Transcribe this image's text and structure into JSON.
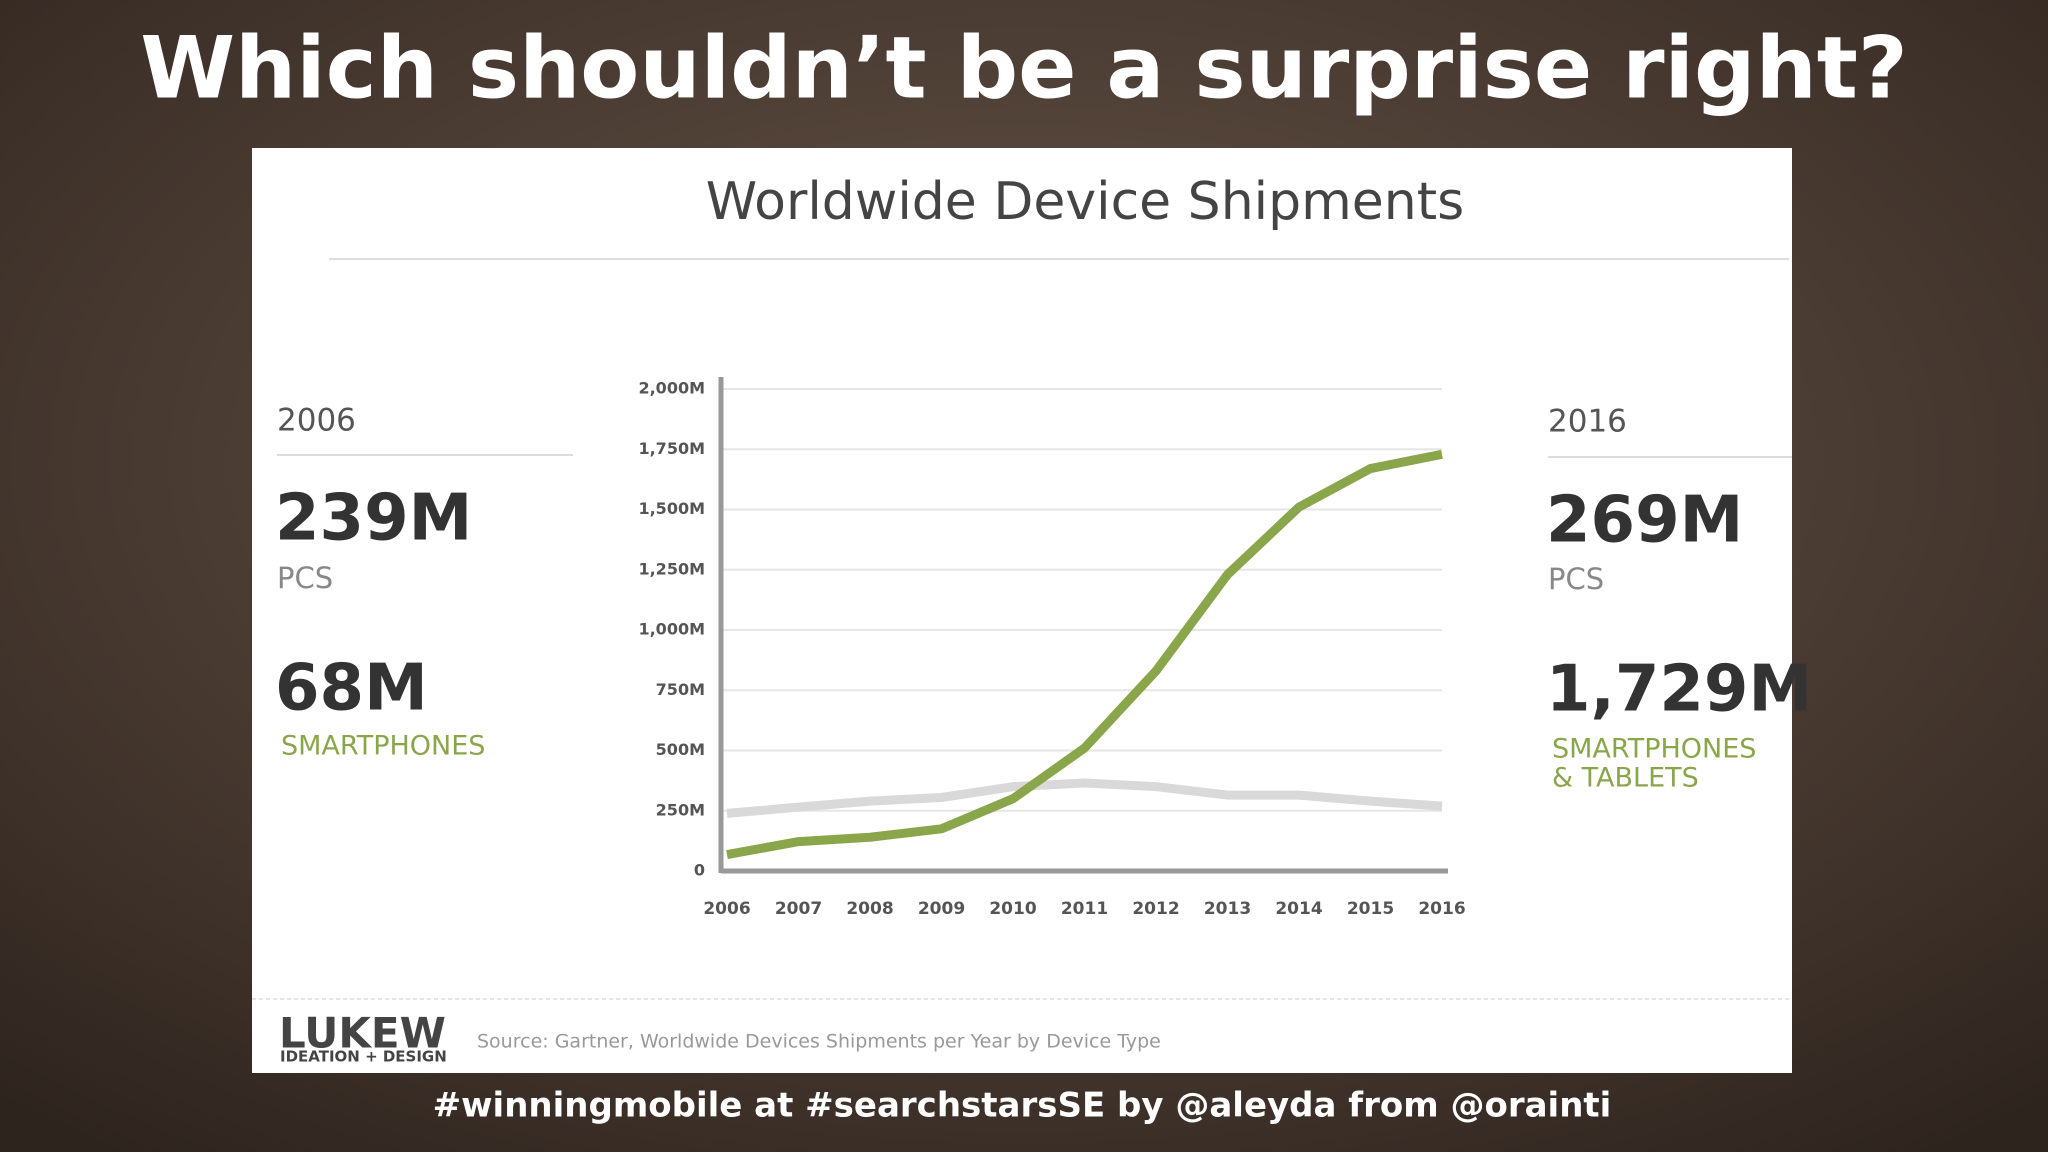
{
  "slide_title": "Which shouldn’t be a surprise right?",
  "footer": "#winningmobile at #searchstarsSE by @aleyda from @orainti",
  "left_panel": {
    "year": "2006",
    "pcs_value": "239M",
    "pcs_label": "PCS",
    "phones_value": "68M",
    "phones_label": [
      "SMARTPHONES"
    ]
  },
  "right_panel": {
    "year": "2016",
    "pcs_value": "269M",
    "pcs_label": "PCS",
    "phones_value": "1,729M",
    "phones_label": [
      "SMARTPHONES",
      "& TABLETS"
    ]
  },
  "logo": {
    "name": "LUKEW",
    "tagline": "IDEATION + DESIGN"
  },
  "source": "Source: Gartner, Worldwide Devices Shipments per Year by Device Type",
  "chart_data": {
    "type": "line",
    "title": "Worldwide Device Shipments",
    "categories": [
      "2006",
      "2007",
      "2008",
      "2009",
      "2010",
      "2011",
      "2012",
      "2013",
      "2014",
      "2015",
      "2016"
    ],
    "series": [
      {
        "color": "#d9d9d9",
        "values": [
          239,
          265,
          290,
          305,
          350,
          365,
          350,
          315,
          315,
          290,
          269
        ]
      },
      {
        "color": "#8aa64a",
        "values": [
          68,
          122,
          140,
          175,
          300,
          510,
          830,
          1230,
          1510,
          1670,
          1729
        ]
      }
    ],
    "ylim": [
      0,
      2000
    ],
    "yticks": [
      0,
      {
        "value": 250,
        "label": "250M"
      },
      {
        "value": 500,
        "label": "500M"
      },
      {
        "value": 750,
        "label": "750M"
      },
      {
        "value": 1000,
        "label": "1,000M"
      },
      {
        "value": 1250,
        "label": "1,250M"
      },
      {
        "value": 1500,
        "label": "1,500M"
      },
      {
        "value": 1750,
        "label": "1,750M"
      },
      {
        "value": 2000,
        "label": "2,000M"
      }
    ],
    "grid": true
  }
}
